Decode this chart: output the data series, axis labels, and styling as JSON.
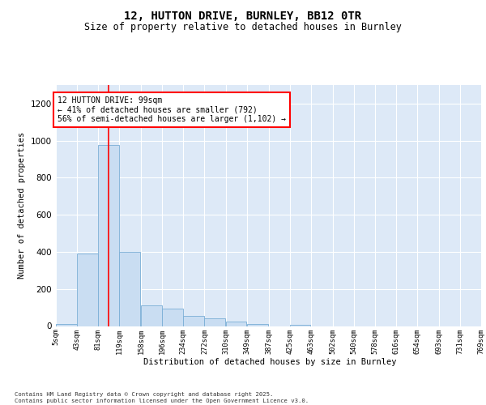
{
  "title": "12, HUTTON DRIVE, BURNLEY, BB12 0TR",
  "subtitle": "Size of property relative to detached houses in Burnley",
  "xlabel": "Distribution of detached houses by size in Burnley",
  "ylabel": "Number of detached properties",
  "footer_line1": "Contains HM Land Registry data © Crown copyright and database right 2025.",
  "footer_line2": "Contains public sector information licensed under the Open Government Licence v3.0.",
  "bar_color": "#c9ddf2",
  "bar_edge_color": "#7aaed6",
  "background_color": "#dde9f7",
  "annotation_text": "12 HUTTON DRIVE: 99sqm\n← 41% of detached houses are smaller (792)\n56% of semi-detached houses are larger (1,102) →",
  "red_line_x": 99,
  "bins": [
    5,
    43,
    81,
    119,
    158,
    196,
    234,
    272,
    310,
    349,
    387,
    425,
    463,
    502,
    540,
    578,
    616,
    654,
    693,
    731,
    769
  ],
  "bin_labels": [
    "5sqm",
    "43sqm",
    "81sqm",
    "119sqm",
    "158sqm",
    "196sqm",
    "234sqm",
    "272sqm",
    "310sqm",
    "349sqm",
    "387sqm",
    "425sqm",
    "463sqm",
    "502sqm",
    "540sqm",
    "578sqm",
    "616sqm",
    "654sqm",
    "693sqm",
    "731sqm",
    "769sqm"
  ],
  "counts": [
    10,
    390,
    975,
    400,
    110,
    95,
    55,
    40,
    25,
    10,
    0,
    5,
    0,
    0,
    0,
    0,
    0,
    0,
    0,
    0
  ],
  "ylim": [
    0,
    1300
  ],
  "yticks": [
    0,
    200,
    400,
    600,
    800,
    1000,
    1200
  ]
}
